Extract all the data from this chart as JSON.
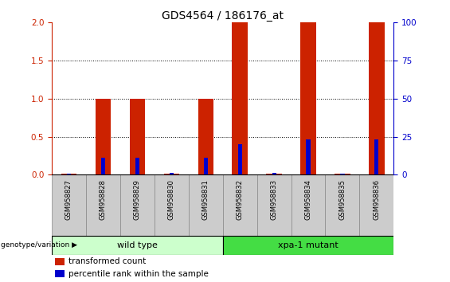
{
  "title": "GDS4564 / 186176_at",
  "samples": [
    "GSM958827",
    "GSM958828",
    "GSM958829",
    "GSM958830",
    "GSM958831",
    "GSM958832",
    "GSM958833",
    "GSM958834",
    "GSM958835",
    "GSM958836"
  ],
  "red_values": [
    0.02,
    1.0,
    1.0,
    0.02,
    1.0,
    2.0,
    0.02,
    2.0,
    0.02,
    2.0
  ],
  "blue_values": [
    0.02,
    0.22,
    0.22,
    0.03,
    0.22,
    0.4,
    0.03,
    0.47,
    0.02,
    0.47
  ],
  "ylim_left": [
    0,
    2
  ],
  "ylim_right": [
    0,
    100
  ],
  "yticks_left": [
    0,
    0.5,
    1.0,
    1.5,
    2.0
  ],
  "yticks_right": [
    0,
    25,
    50,
    75,
    100
  ],
  "red_color": "#cc2200",
  "blue_color": "#0000cc",
  "bar_width": 0.45,
  "blue_bar_width": 0.12,
  "group_label": "genotype/variation",
  "wt_label": "wild type",
  "wt_color": "#ccffcc",
  "xpa_label": "xpa-1 mutant",
  "xpa_color": "#44dd44",
  "legend_red": "transformed count",
  "legend_blue": "percentile rank within the sample",
  "tick_color_left": "#cc2200",
  "tick_color_right": "#0000cc",
  "title_fontsize": 10,
  "axis_fontsize": 7.5,
  "sample_fontsize": 6.0,
  "group_fontsize": 8,
  "legend_fontsize": 7.5,
  "background_color": "#ffffff"
}
